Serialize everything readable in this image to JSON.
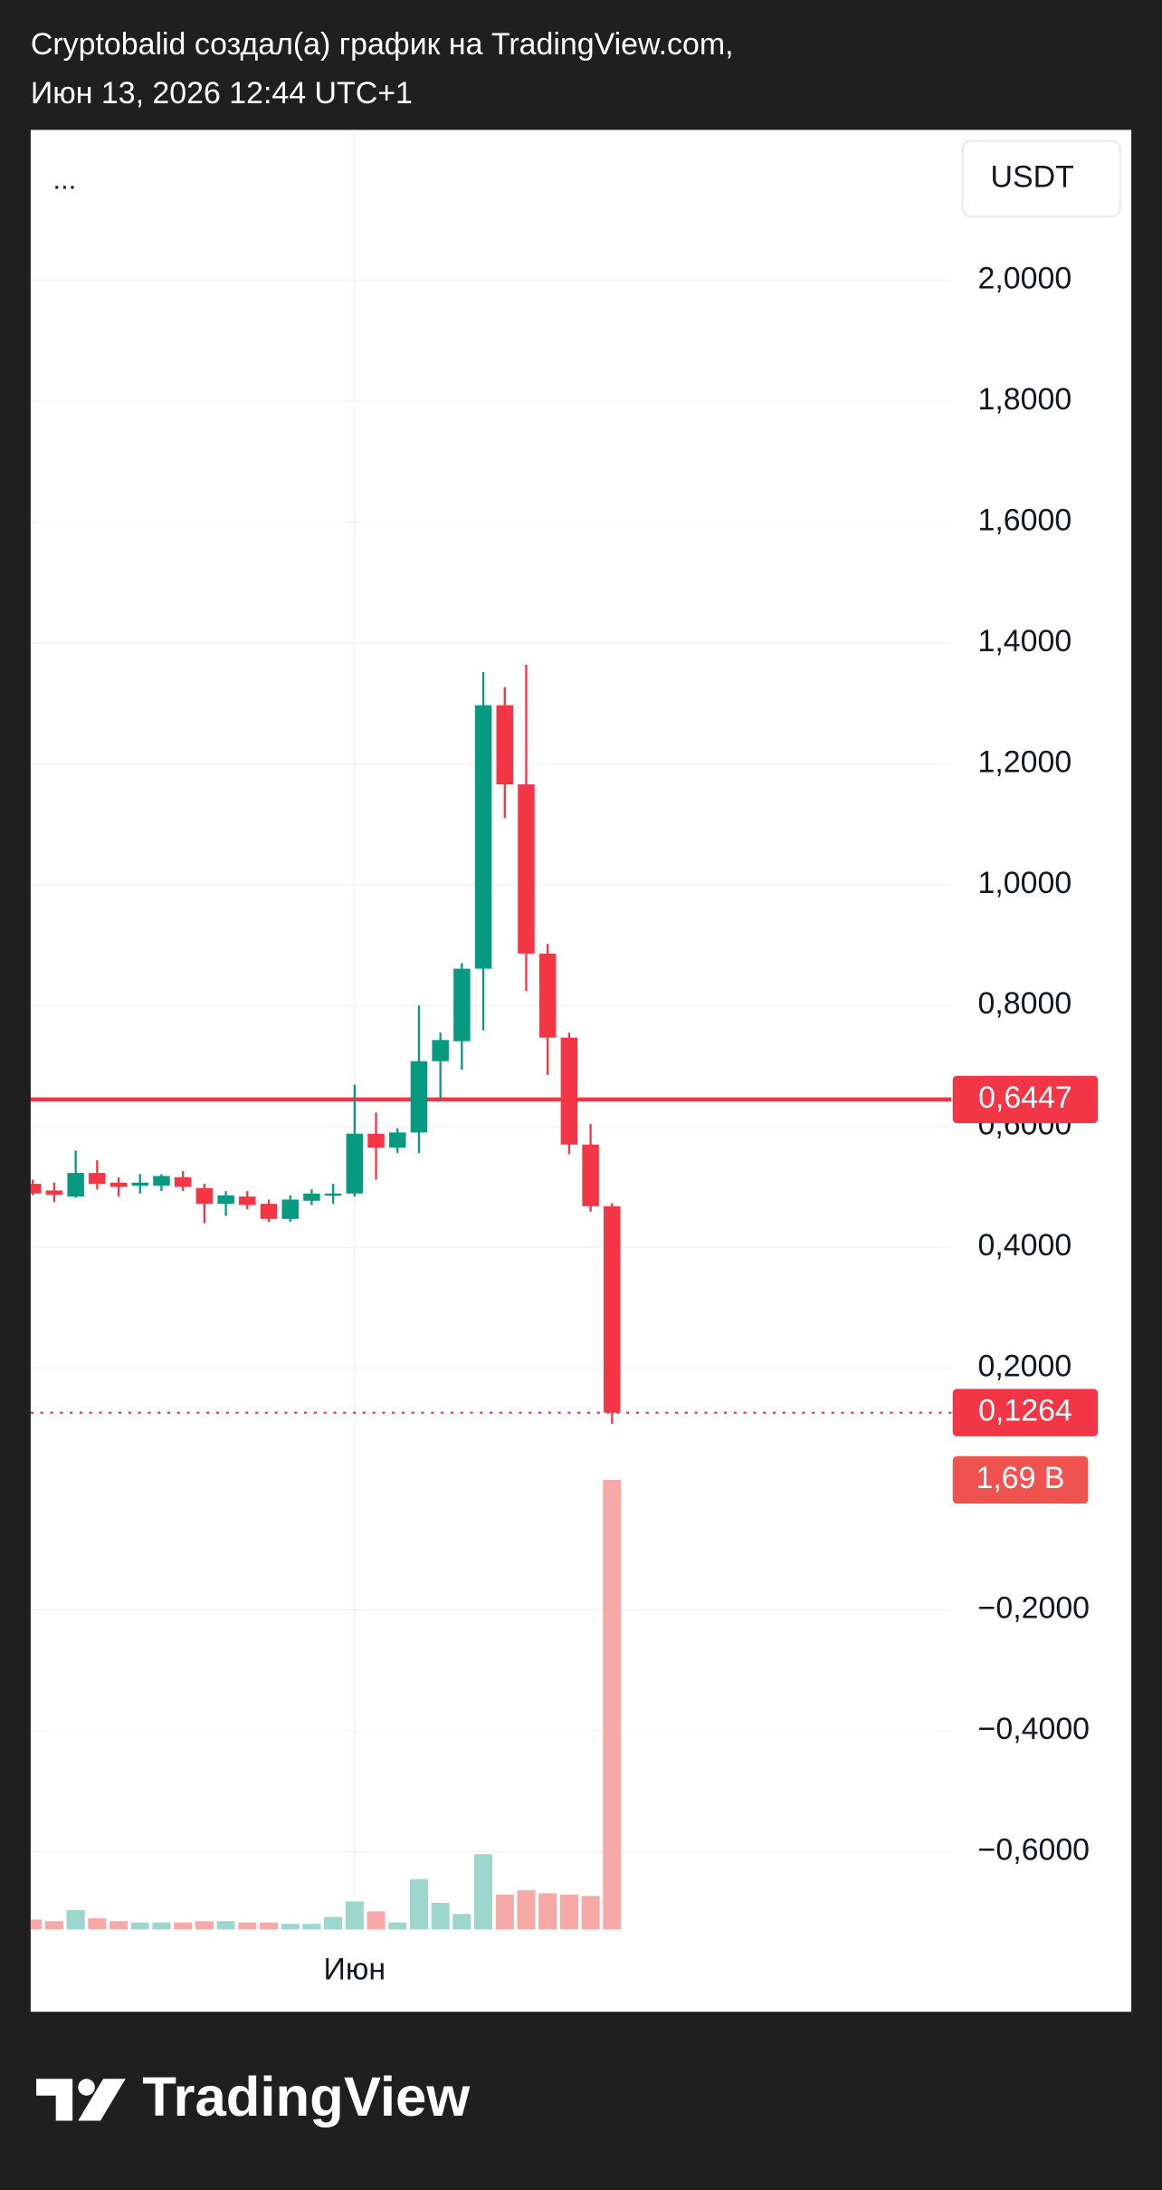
{
  "header": {
    "line1": "Cryptobalid создал(а) график на TradingView.com,",
    "line2": "Июн 13, 2026 12:44 UTC+1"
  },
  "footer": {
    "logo": "TradingView"
  },
  "chart_data": {
    "type": "candlestick",
    "legend": "...",
    "currency": "USDT",
    "categories": [
      null,
      null,
      null,
      null,
      null,
      null,
      null,
      null,
      null,
      null,
      null,
      null,
      null,
      null,
      null,
      "Июн",
      null,
      null,
      null,
      null,
      null,
      null,
      null,
      null,
      null,
      null,
      null,
      null
    ],
    "open": [
      0.505,
      0.494,
      0.484,
      0.523,
      0.507,
      0.502,
      0.502,
      0.516,
      0.498,
      0.472,
      0.484,
      0.472,
      0.447,
      0.477,
      0.486,
      0.489,
      0.588,
      0.565,
      0.59,
      0.708,
      0.741,
      0.861,
      1.297,
      1.166,
      0.886,
      0.747,
      0.57,
      0.468
    ],
    "high": [
      0.512,
      0.507,
      0.56,
      0.544,
      0.516,
      0.521,
      0.521,
      0.526,
      0.505,
      0.493,
      0.493,
      0.479,
      0.486,
      0.496,
      0.505,
      0.669,
      0.623,
      0.597,
      0.8,
      0.755,
      0.87,
      1.352,
      1.327,
      1.364,
      0.902,
      0.755,
      0.604,
      0.473
    ],
    "low": [
      0.486,
      0.475,
      0.482,
      0.496,
      0.484,
      0.489,
      0.493,
      0.493,
      0.44,
      0.452,
      0.463,
      0.442,
      0.442,
      0.47,
      0.472,
      0.484,
      0.512,
      0.556,
      0.556,
      0.644,
      0.694,
      0.759,
      1.11,
      0.824,
      0.685,
      0.554,
      0.459,
      0.108
    ],
    "close": [
      0.489,
      0.487,
      0.523,
      0.505,
      0.5,
      0.507,
      0.518,
      0.5,
      0.472,
      0.486,
      0.47,
      0.447,
      0.479,
      0.489,
      0.489,
      0.588,
      0.565,
      0.59,
      0.708,
      0.743,
      0.861,
      1.297,
      1.166,
      0.886,
      0.747,
      0.57,
      0.468,
      0.1264
    ],
    "volume": [
      0.037,
      0.031,
      0.073,
      0.042,
      0.031,
      0.026,
      0.026,
      0.026,
      0.031,
      0.031,
      0.026,
      0.026,
      0.021,
      0.021,
      0.047,
      0.105,
      0.068,
      0.026,
      0.189,
      0.1,
      0.058,
      0.283,
      0.131,
      0.147,
      0.136,
      0.131,
      0.126,
      1.69
    ],
    "volume_label": "1,69 B",
    "up_color": "#089981",
    "down_color": "#f23645",
    "volume_up_color": "#9cd6cc",
    "volume_down_color": "#f7a9a7",
    "price_line": {
      "value": 0.1264,
      "label": "0,1264"
    },
    "alert_line": {
      "value": 0.6447,
      "label": "0,6447"
    },
    "ylim": [
      -0.865,
      2.249
    ],
    "yticks": [
      {
        "value": 2.0,
        "label": "2,0000"
      },
      {
        "value": 1.8,
        "label": "1,8000"
      },
      {
        "value": 1.6,
        "label": "1,6000"
      },
      {
        "value": 1.4,
        "label": "1,4000"
      },
      {
        "value": 1.2,
        "label": "1,2000"
      },
      {
        "value": 1.0,
        "label": "1,0000"
      },
      {
        "value": 0.8,
        "label": "0,8000"
      },
      {
        "value": 0.6,
        "label": "0,6000"
      },
      {
        "value": 0.4,
        "label": "0,4000"
      },
      {
        "value": 0.2,
        "label": "0,2000"
      },
      {
        "value": -0.2,
        "label": "−0,2000"
      },
      {
        "value": -0.4,
        "label": "−0,4000"
      },
      {
        "value": -0.6,
        "label": "−0,6000"
      }
    ],
    "grid": true
  }
}
